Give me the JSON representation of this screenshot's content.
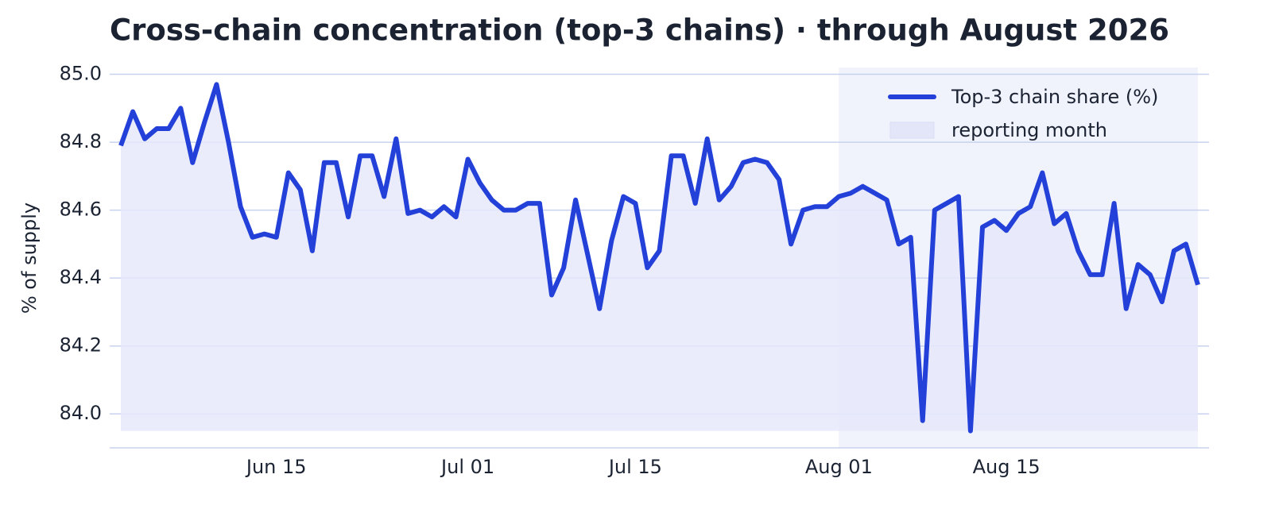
{
  "chart_data": {
    "type": "line",
    "title": "Cross-chain concentration (top-3 chains) · through August 2026",
    "ylabel": "% of supply",
    "x": [
      "Jun 02",
      "Jun 03",
      "Jun 04",
      "Jun 05",
      "Jun 06",
      "Jun 07",
      "Jun 08",
      "Jun 09",
      "Jun 10",
      "Jun 11",
      "Jun 12",
      "Jun 13",
      "Jun 14",
      "Jun 15",
      "Jun 16",
      "Jun 17",
      "Jun 18",
      "Jun 19",
      "Jun 20",
      "Jun 21",
      "Jun 22",
      "Jun 23",
      "Jun 24",
      "Jun 25",
      "Jun 26",
      "Jun 27",
      "Jun 28",
      "Jun 29",
      "Jun 30",
      "Jul 01",
      "Jul 02",
      "Jul 03",
      "Jul 04",
      "Jul 05",
      "Jul 06",
      "Jul 07",
      "Jul 08",
      "Jul 09",
      "Jul 10",
      "Jul 11",
      "Jul 12",
      "Jul 13",
      "Jul 14",
      "Jul 15",
      "Jul 16",
      "Jul 17",
      "Jul 18",
      "Jul 19",
      "Jul 20",
      "Jul 21",
      "Jul 22",
      "Jul 23",
      "Jul 24",
      "Jul 25",
      "Jul 26",
      "Jul 27",
      "Jul 28",
      "Jul 29",
      "Jul 30",
      "Jul 31",
      "Aug 01",
      "Aug 02",
      "Aug 03",
      "Aug 04",
      "Aug 05",
      "Aug 06",
      "Aug 07",
      "Aug 08",
      "Aug 09",
      "Aug 10",
      "Aug 11",
      "Aug 12",
      "Aug 13",
      "Aug 14",
      "Aug 15",
      "Aug 16",
      "Aug 17",
      "Aug 18",
      "Aug 19",
      "Aug 20",
      "Aug 21",
      "Aug 22",
      "Aug 23",
      "Aug 24",
      "Aug 25",
      "Aug 26",
      "Aug 27",
      "Aug 28",
      "Aug 29",
      "Aug 30",
      "Aug 31"
    ],
    "series": [
      {
        "name": "Top-3 chain share (%)",
        "color": "#2340d8",
        "fill": "#e6e9fa",
        "values": [
          84.79,
          84.89,
          84.81,
          84.84,
          84.84,
          84.9,
          84.74,
          84.86,
          84.97,
          84.8,
          84.61,
          84.52,
          84.53,
          84.52,
          84.71,
          84.66,
          84.48,
          84.74,
          84.74,
          84.58,
          84.76,
          84.76,
          84.64,
          84.81,
          84.59,
          84.6,
          84.58,
          84.61,
          84.58,
          84.75,
          84.68,
          84.63,
          84.6,
          84.6,
          84.62,
          84.62,
          84.35,
          84.43,
          84.63,
          84.47,
          84.31,
          84.51,
          84.64,
          84.62,
          84.43,
          84.48,
          84.76,
          84.76,
          84.62,
          84.81,
          84.63,
          84.67,
          84.74,
          84.75,
          84.74,
          84.69,
          84.5,
          84.6,
          84.61,
          84.61,
          84.64,
          84.65,
          84.67,
          84.65,
          84.63,
          84.5,
          84.52,
          83.98,
          84.6,
          84.62,
          84.64,
          83.95,
          84.55,
          84.57,
          84.54,
          84.59,
          84.61,
          84.71,
          84.56,
          84.59,
          84.48,
          84.41,
          84.41,
          84.62,
          84.31,
          84.44,
          84.41,
          84.33,
          84.48,
          84.5,
          84.38
        ]
      }
    ],
    "highlight": {
      "start": "Aug 01",
      "end": "Aug 31",
      "label": "reporting month",
      "color": "#eef1fc"
    },
    "xticks": [
      "Jun 15",
      "Jul 01",
      "Jul 15",
      "Aug 01",
      "Aug 15"
    ],
    "ylim": [
      83.9,
      85.02
    ],
    "yticks": [
      {
        "value": 84.0,
        "label": "84.0"
      },
      {
        "value": 84.2,
        "label": "84.2"
      },
      {
        "value": 84.4,
        "label": "84.4"
      },
      {
        "value": 84.6,
        "label": "84.6"
      },
      {
        "value": 84.8,
        "label": "84.8"
      },
      {
        "value": 85.0,
        "label": "85.0"
      }
    ],
    "grid": true,
    "legend": "upper right"
  }
}
